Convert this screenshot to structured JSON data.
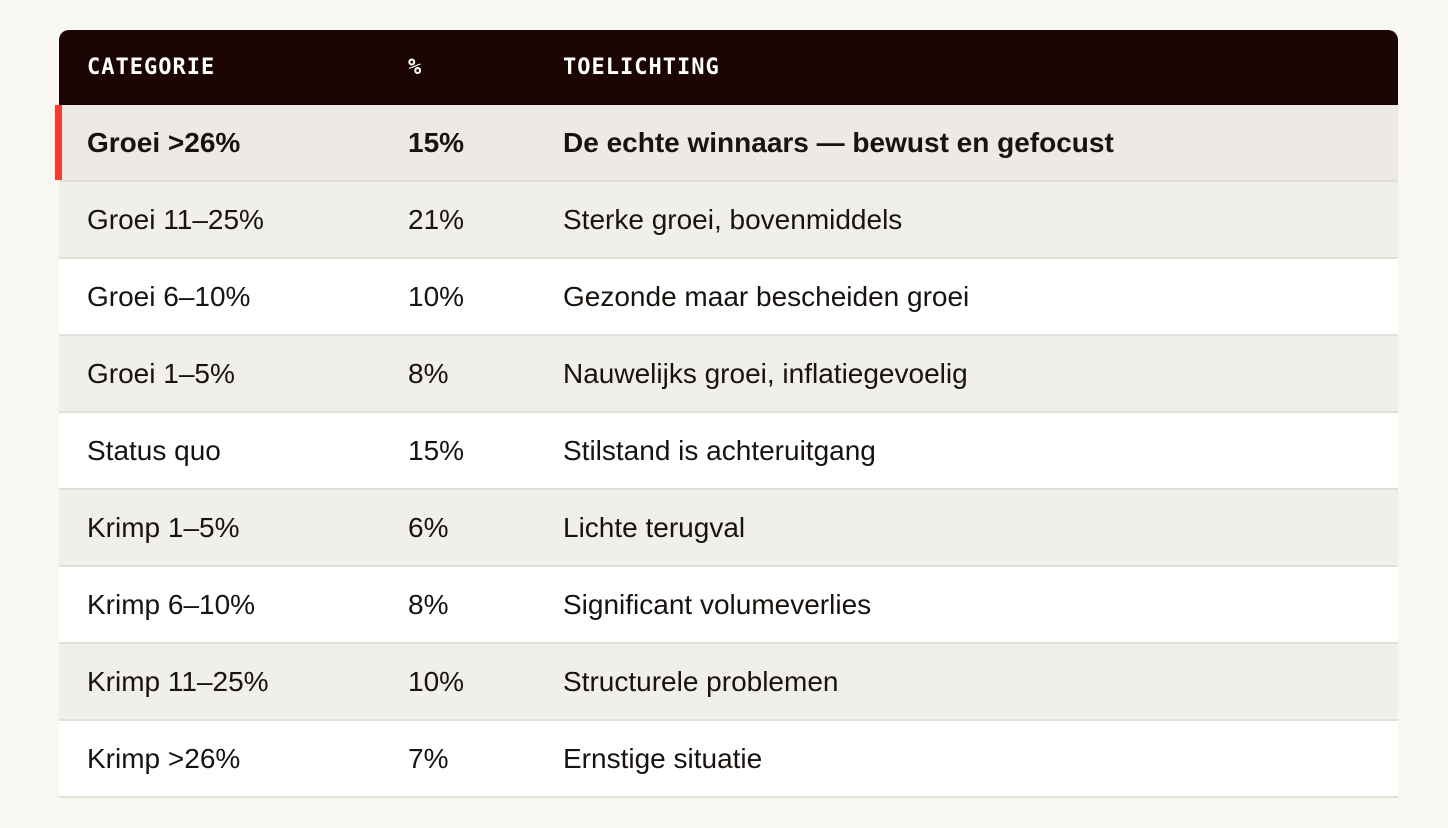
{
  "colors": {
    "page_bg": "#F9F7F1",
    "header_bg": "#1A0503",
    "header_text": "#FFFFFF",
    "accent_red": "#F43B2E",
    "row_highlight_bg": "#EDE9E6",
    "row_beige_bg": "#F0EFEA",
    "row_white_bg": "#FFFFFF",
    "divider": "#E2DFD9",
    "text": "#18130F"
  },
  "table": {
    "columns": [
      {
        "label": "CATEGORIE"
      },
      {
        "label": "%"
      },
      {
        "label": "TOELICHTING"
      }
    ],
    "rows": [
      {
        "categorie": "Groei >26%",
        "pct": "15%",
        "toelichting": "De echte winnaars — bewust en gefocust",
        "highlight": true
      },
      {
        "categorie": "Groei 11–25%",
        "pct": "21%",
        "toelichting": "Sterke groei, bovenmiddels",
        "highlight": false
      },
      {
        "categorie": "Groei 6–10%",
        "pct": "10%",
        "toelichting": "Gezonde maar bescheiden groei",
        "highlight": false
      },
      {
        "categorie": "Groei 1–5%",
        "pct": "8%",
        "toelichting": "Nauwelijks groei, inflatiegevoelig",
        "highlight": false
      },
      {
        "categorie": "Status quo",
        "pct": "15%",
        "toelichting": "Stilstand is achteruitgang",
        "highlight": false
      },
      {
        "categorie": "Krimp 1–5%",
        "pct": "6%",
        "toelichting": "Lichte terugval",
        "highlight": false
      },
      {
        "categorie": "Krimp 6–10%",
        "pct": "8%",
        "toelichting": "Significant volumeverlies",
        "highlight": false
      },
      {
        "categorie": "Krimp 11–25%",
        "pct": "10%",
        "toelichting": "Structurele problemen",
        "highlight": false
      },
      {
        "categorie": "Krimp >26%",
        "pct": "7%",
        "toelichting": "Ernstige situatie",
        "highlight": false
      }
    ]
  }
}
